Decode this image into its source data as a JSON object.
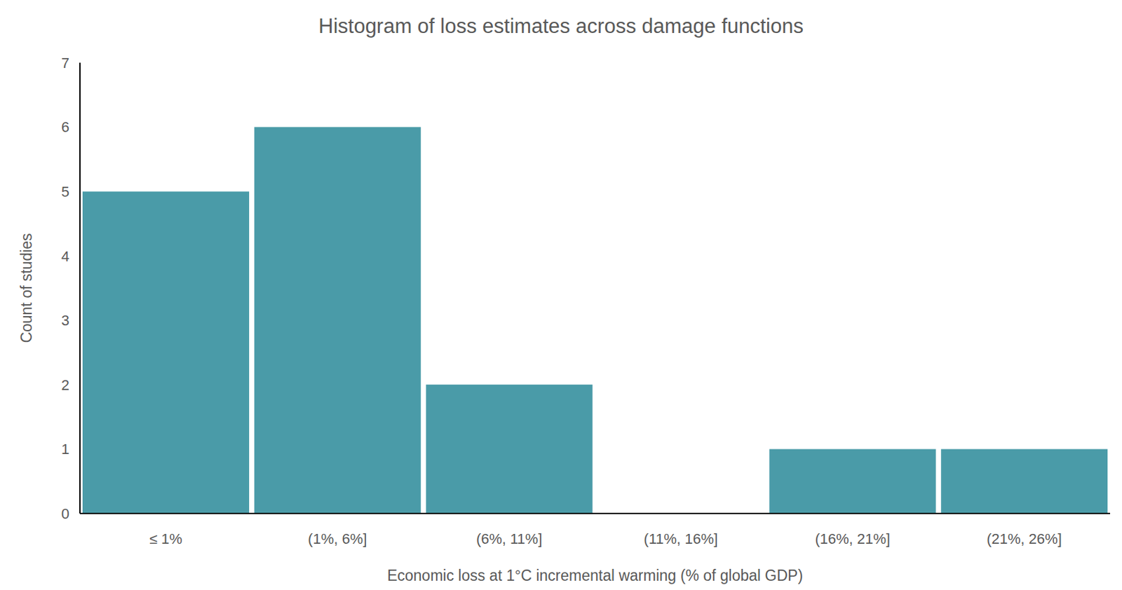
{
  "chart_data": {
    "type": "bar",
    "title": "Histogram of loss estimates across damage functions",
    "x_label": "Economic loss at 1°C incremental warming (% of global GDP)",
    "y_label": "Count of studies",
    "categories": [
      "≤ 1%",
      "(1%, 6%]",
      "(6%, 11%]",
      "(11%, 16%]",
      "(16%, 21%]",
      "(21%, 26%]"
    ],
    "values": [
      5,
      6,
      2,
      0,
      1,
      1
    ],
    "color": "#4a9ba8",
    "ylim": [
      0,
      7
    ],
    "yticks": [
      0,
      1,
      2,
      3,
      4,
      5,
      6,
      7
    ],
    "grid": false
  }
}
